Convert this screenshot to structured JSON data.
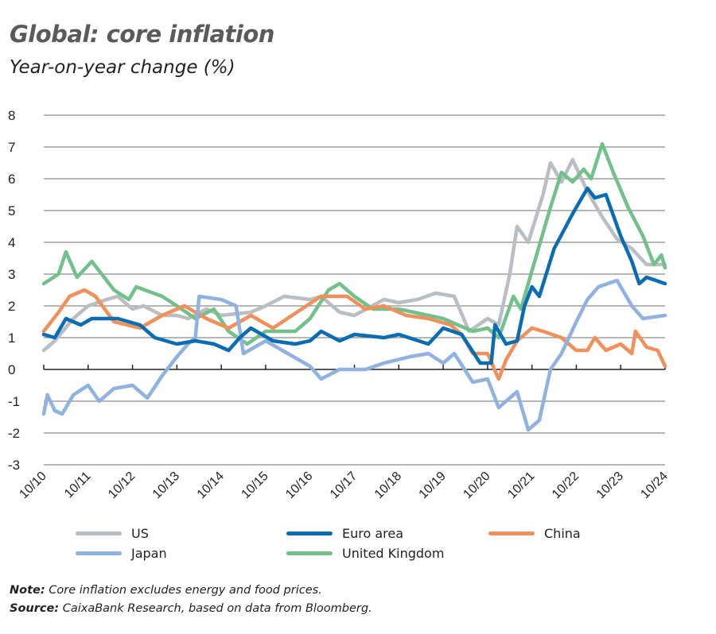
{
  "title": "Global: core inflation",
  "subtitle": "Year-on-year change (%)",
  "note_label": "Note:",
  "note_text": "Core inflation excludes energy and food prices.",
  "source_label": "Source:",
  "source_text": "CaixaBank Research, based on data from Bloomberg.",
  "chart_data": {
    "type": "line",
    "title": "Global: core inflation",
    "subtitle": "Year-on-year change (%)",
    "ylim": [
      -3,
      8
    ],
    "yticks": [
      "8",
      "7",
      "6",
      "5",
      "4",
      "3",
      "2",
      "1",
      "0",
      "-1",
      "-2",
      "-3"
    ],
    "xlim": [
      "2010-10",
      "2024-10"
    ],
    "xticks": [
      "10/10",
      "10/11",
      "10/12",
      "10/13",
      "10/14",
      "10/15",
      "10/16",
      "10/17",
      "10/18",
      "10/19",
      "10/20",
      "10/21",
      "10/22",
      "10/23",
      "10/24"
    ],
    "grid": true,
    "legend": "bottom",
    "series": [
      {
        "name": "US",
        "color": "#b8bec4",
        "points": [
          [
            "2010-10",
            0.6
          ],
          [
            "2011-01",
            0.9
          ],
          [
            "2011-06",
            1.6
          ],
          [
            "2011-10",
            2.0
          ],
          [
            "2012-03",
            2.2
          ],
          [
            "2012-06",
            2.3
          ],
          [
            "2012-10",
            1.9
          ],
          [
            "2013-01",
            2.0
          ],
          [
            "2013-06",
            1.7
          ],
          [
            "2013-10",
            1.7
          ],
          [
            "2014-01",
            1.6
          ],
          [
            "2014-06",
            1.9
          ],
          [
            "2014-10",
            1.7
          ],
          [
            "2015-06",
            1.8
          ],
          [
            "2015-10",
            2.0
          ],
          [
            "2016-03",
            2.3
          ],
          [
            "2016-10",
            2.2
          ],
          [
            "2017-01",
            2.3
          ],
          [
            "2017-06",
            1.8
          ],
          [
            "2017-10",
            1.7
          ],
          [
            "2018-06",
            2.2
          ],
          [
            "2018-10",
            2.1
          ],
          [
            "2019-03",
            2.2
          ],
          [
            "2019-08",
            2.4
          ],
          [
            "2020-01",
            2.3
          ],
          [
            "2020-05",
            1.2
          ],
          [
            "2020-10",
            1.6
          ],
          [
            "2021-01",
            1.4
          ],
          [
            "2021-04",
            3.0
          ],
          [
            "2021-06",
            4.5
          ],
          [
            "2021-09",
            4.0
          ],
          [
            "2022-01",
            5.5
          ],
          [
            "2022-03",
            6.5
          ],
          [
            "2022-06",
            5.9
          ],
          [
            "2022-09",
            6.6
          ],
          [
            "2023-01",
            5.6
          ],
          [
            "2023-05",
            4.8
          ],
          [
            "2023-09",
            4.1
          ],
          [
            "2024-01",
            3.8
          ],
          [
            "2024-05",
            3.3
          ],
          [
            "2024-10",
            3.3
          ]
        ]
      },
      {
        "name": "Euro area",
        "color": "#0a6cb2",
        "points": [
          [
            "2010-10",
            1.1
          ],
          [
            "2011-01",
            1.0
          ],
          [
            "2011-04",
            1.6
          ],
          [
            "2011-08",
            1.4
          ],
          [
            "2011-11",
            1.6
          ],
          [
            "2012-06",
            1.6
          ],
          [
            "2012-12",
            1.4
          ],
          [
            "2013-04",
            1.0
          ],
          [
            "2013-10",
            0.8
          ],
          [
            "2014-03",
            0.9
          ],
          [
            "2014-08",
            0.8
          ],
          [
            "2014-12",
            0.6
          ],
          [
            "2015-03",
            1.0
          ],
          [
            "2015-06",
            1.3
          ],
          [
            "2015-12",
            0.9
          ],
          [
            "2016-06",
            0.8
          ],
          [
            "2016-10",
            0.9
          ],
          [
            "2017-01",
            1.2
          ],
          [
            "2017-06",
            0.9
          ],
          [
            "2017-10",
            1.1
          ],
          [
            "2018-06",
            1.0
          ],
          [
            "2018-10",
            1.1
          ],
          [
            "2019-06",
            0.8
          ],
          [
            "2019-10",
            1.3
          ],
          [
            "2020-03",
            1.1
          ],
          [
            "2020-08",
            0.2
          ],
          [
            "2020-11",
            0.2
          ],
          [
            "2020-12",
            1.4
          ],
          [
            "2021-03",
            0.8
          ],
          [
            "2021-06",
            0.9
          ],
          [
            "2021-08",
            2.0
          ],
          [
            "2021-10",
            2.6
          ],
          [
            "2021-12",
            2.3
          ],
          [
            "2022-04",
            3.8
          ],
          [
            "2022-09",
            4.9
          ],
          [
            "2022-12",
            5.5
          ],
          [
            "2023-01",
            5.7
          ],
          [
            "2023-03",
            5.4
          ],
          [
            "2023-06",
            5.5
          ],
          [
            "2023-10",
            4.2
          ],
          [
            "2024-01",
            3.4
          ],
          [
            "2024-03",
            2.7
          ],
          [
            "2024-05",
            2.9
          ],
          [
            "2024-10",
            2.7
          ]
        ]
      },
      {
        "name": "China",
        "color": "#f0905a",
        "points": [
          [
            "2010-10",
            1.2
          ],
          [
            "2011-02",
            1.8
          ],
          [
            "2011-05",
            2.3
          ],
          [
            "2011-09",
            2.5
          ],
          [
            "2011-12",
            2.3
          ],
          [
            "2012-05",
            1.5
          ],
          [
            "2012-12",
            1.3
          ],
          [
            "2013-06",
            1.7
          ],
          [
            "2013-12",
            2.0
          ],
          [
            "2014-06",
            1.6
          ],
          [
            "2014-12",
            1.3
          ],
          [
            "2015-06",
            1.7
          ],
          [
            "2015-12",
            1.3
          ],
          [
            "2016-09",
            2.0
          ],
          [
            "2017-01",
            2.3
          ],
          [
            "2017-08",
            2.3
          ],
          [
            "2018-01",
            1.9
          ],
          [
            "2018-06",
            2.0
          ],
          [
            "2018-12",
            1.7
          ],
          [
            "2019-06",
            1.6
          ],
          [
            "2019-12",
            1.4
          ],
          [
            "2020-03",
            1.1
          ],
          [
            "2020-06",
            0.5
          ],
          [
            "2020-10",
            0.5
          ],
          [
            "2021-01",
            -0.3
          ],
          [
            "2021-03",
            0.3
          ],
          [
            "2021-06",
            0.9
          ],
          [
            "2021-10",
            1.3
          ],
          [
            "2022-01",
            1.2
          ],
          [
            "2022-06",
            1.0
          ],
          [
            "2022-10",
            0.6
          ],
          [
            "2023-01",
            0.6
          ],
          [
            "2023-03",
            1.0
          ],
          [
            "2023-06",
            0.6
          ],
          [
            "2023-10",
            0.8
          ],
          [
            "2024-01",
            0.5
          ],
          [
            "2024-02",
            1.2
          ],
          [
            "2024-05",
            0.7
          ],
          [
            "2024-08",
            0.6
          ],
          [
            "2024-10",
            0.1
          ]
        ]
      },
      {
        "name": "Japan",
        "color": "#8fb2e0",
        "points": [
          [
            "2010-10",
            -1.4
          ],
          [
            "2010-11",
            -0.8
          ],
          [
            "2011-01",
            -1.3
          ],
          [
            "2011-03",
            -1.4
          ],
          [
            "2011-06",
            -0.8
          ],
          [
            "2011-10",
            -0.5
          ],
          [
            "2012-01",
            -1.0
          ],
          [
            "2012-05",
            -0.6
          ],
          [
            "2012-10",
            -0.5
          ],
          [
            "2013-02",
            -0.9
          ],
          [
            "2013-06",
            -0.2
          ],
          [
            "2013-10",
            0.4
          ],
          [
            "2014-01",
            0.8
          ],
          [
            "2014-03",
            1.0
          ],
          [
            "2014-04",
            2.3
          ],
          [
            "2014-10",
            2.2
          ],
          [
            "2015-02",
            2.0
          ],
          [
            "2015-04",
            0.5
          ],
          [
            "2015-10",
            0.9
          ],
          [
            "2016-04",
            0.5
          ],
          [
            "2016-10",
            0.1
          ],
          [
            "2017-01",
            -0.3
          ],
          [
            "2017-06",
            0.0
          ],
          [
            "2018-01",
            0.0
          ],
          [
            "2018-06",
            0.2
          ],
          [
            "2019-01",
            0.4
          ],
          [
            "2019-06",
            0.5
          ],
          [
            "2019-10",
            0.2
          ],
          [
            "2020-01",
            0.5
          ],
          [
            "2020-06",
            -0.4
          ],
          [
            "2020-10",
            -0.3
          ],
          [
            "2021-01",
            -1.2
          ],
          [
            "2021-06",
            -0.7
          ],
          [
            "2021-09",
            -1.9
          ],
          [
            "2021-12",
            -1.6
          ],
          [
            "2022-03",
            0.0
          ],
          [
            "2022-06",
            0.5
          ],
          [
            "2022-10",
            1.5
          ],
          [
            "2023-01",
            2.2
          ],
          [
            "2023-04",
            2.6
          ],
          [
            "2023-09",
            2.8
          ],
          [
            "2024-01",
            2.0
          ],
          [
            "2024-04",
            1.6
          ],
          [
            "2024-10",
            1.7
          ]
        ]
      },
      {
        "name": "United Kingdom",
        "color": "#72c08a",
        "points": [
          [
            "2010-10",
            2.7
          ],
          [
            "2011-02",
            3.0
          ],
          [
            "2011-04",
            3.7
          ],
          [
            "2011-07",
            2.9
          ],
          [
            "2011-11",
            3.4
          ],
          [
            "2012-05",
            2.5
          ],
          [
            "2012-09",
            2.2
          ],
          [
            "2012-11",
            2.6
          ],
          [
            "2013-06",
            2.3
          ],
          [
            "2013-10",
            2.0
          ],
          [
            "2014-03",
            1.6
          ],
          [
            "2014-08",
            1.9
          ],
          [
            "2014-12",
            1.2
          ],
          [
            "2015-05",
            0.8
          ],
          [
            "2015-10",
            1.2
          ],
          [
            "2016-06",
            1.2
          ],
          [
            "2016-10",
            1.6
          ],
          [
            "2017-03",
            2.5
          ],
          [
            "2017-06",
            2.7
          ],
          [
            "2017-10",
            2.3
          ],
          [
            "2018-03",
            1.9
          ],
          [
            "2018-10",
            1.9
          ],
          [
            "2019-06",
            1.7
          ],
          [
            "2019-10",
            1.6
          ],
          [
            "2020-06",
            1.2
          ],
          [
            "2020-10",
            1.3
          ],
          [
            "2021-01",
            1.0
          ],
          [
            "2021-05",
            2.3
          ],
          [
            "2021-07",
            1.9
          ],
          [
            "2021-12",
            3.9
          ],
          [
            "2022-03",
            5.1
          ],
          [
            "2022-06",
            6.2
          ],
          [
            "2022-09",
            5.9
          ],
          [
            "2022-12",
            6.3
          ],
          [
            "2023-02",
            6.0
          ],
          [
            "2023-05",
            7.1
          ],
          [
            "2023-08",
            6.2
          ],
          [
            "2023-12",
            5.1
          ],
          [
            "2024-04",
            4.2
          ],
          [
            "2024-07",
            3.3
          ],
          [
            "2024-09",
            3.6
          ],
          [
            "2024-10",
            3.2
          ]
        ]
      }
    ]
  }
}
